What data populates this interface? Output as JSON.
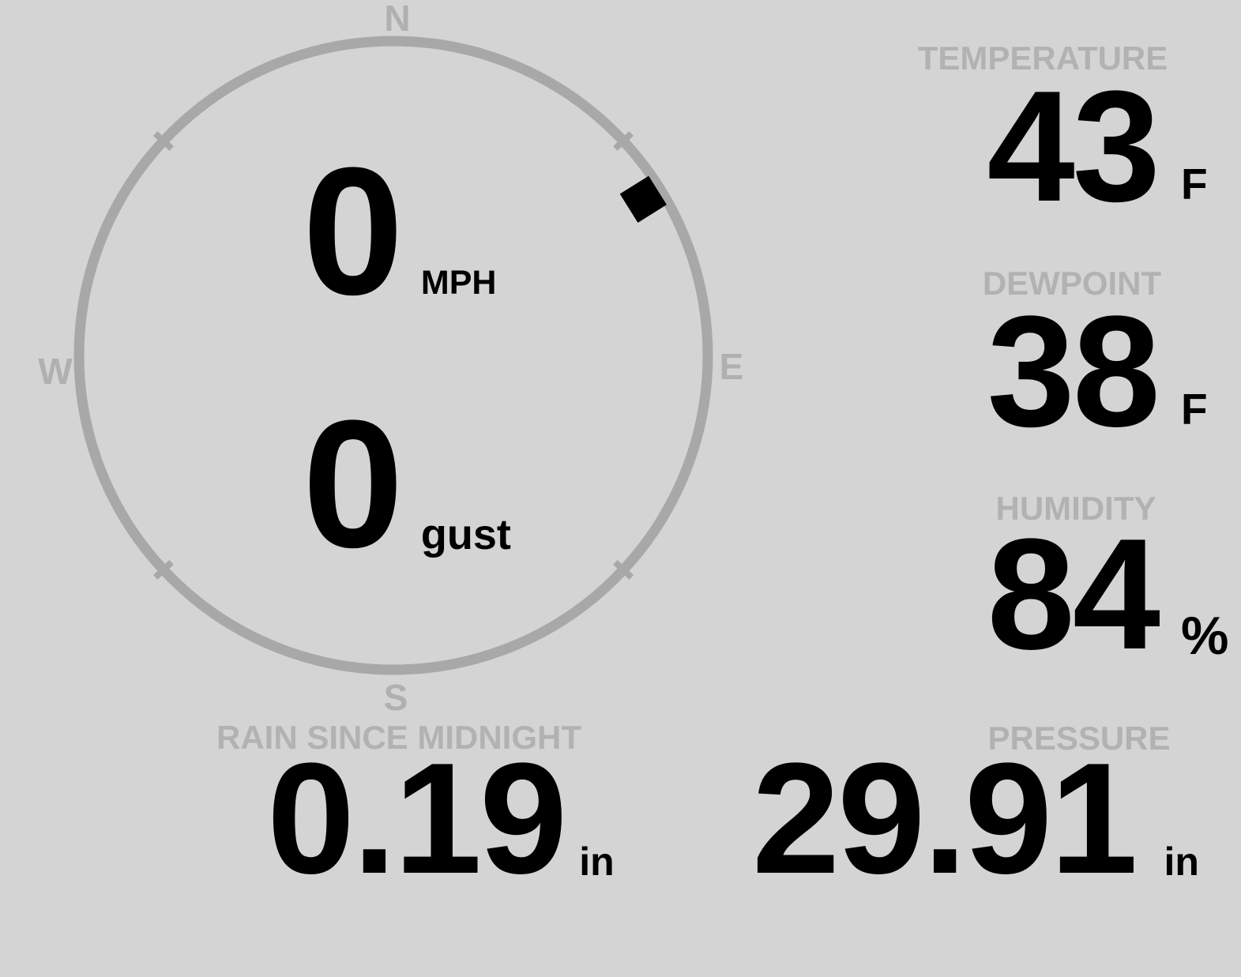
{
  "theme": {
    "background": "#d4d4d4",
    "ring_color": "#a8a8a8",
    "compass_letter_color": "#b0b0b0",
    "label_color": "#b2b2b2",
    "value_color": "#000000",
    "marker_color": "#000000"
  },
  "compass": {
    "north_label": "N",
    "east_label": "E",
    "south_label": "S",
    "west_label": "W",
    "wind_direction_deg": 58,
    "speed": {
      "value": "0",
      "unit": "MPH"
    },
    "gust": {
      "value": "0",
      "unit": "gust"
    }
  },
  "metrics": {
    "temperature": {
      "label": "TEMPERATURE",
      "value": "43",
      "unit": "F"
    },
    "dewpoint": {
      "label": "DEWPOINT",
      "value": "38",
      "unit": "F"
    },
    "humidity": {
      "label": "HUMIDITY",
      "value": "84",
      "unit": "%"
    },
    "rain_since_midnight": {
      "label": "RAIN SINCE MIDNIGHT",
      "value": "0.19",
      "unit": "in"
    },
    "pressure": {
      "label": "PRESSURE",
      "value": "29.91",
      "unit": "in"
    }
  }
}
